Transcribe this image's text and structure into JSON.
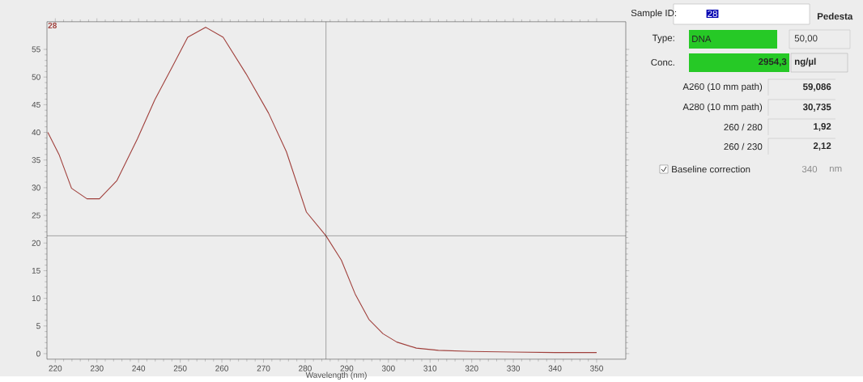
{
  "chart_data": [
    {
      "type": "line",
      "xlabel": "Wavelength (nm)",
      "xlim": [
        218,
        357
      ],
      "ylim": [
        -1,
        60
      ],
      "xticks": [
        220,
        230,
        240,
        250,
        260,
        270,
        280,
        290,
        300,
        310,
        320,
        330,
        340,
        350
      ],
      "yticks": [
        0,
        5,
        10,
        15,
        20,
        25,
        30,
        35,
        40,
        45,
        50,
        55
      ],
      "series": [
        {
          "name": "28",
          "color": "#a0403c",
          "x": [
            218.2,
            220.9,
            223.9,
            227.6,
            230.6,
            234.8,
            239.7,
            243.9,
            248.2,
            251.8,
            256.1,
            260.3,
            265.8,
            271.2,
            275.5,
            280.3,
            285,
            288.7,
            292,
            295.3,
            298.7,
            302,
            306.7,
            312,
            320,
            330,
            340,
            350
          ],
          "values": [
            40.0,
            36.0,
            29.9,
            28.0,
            28.0,
            31.3,
            38.8,
            45.9,
            52.0,
            57.2,
            59.0,
            57.2,
            50.6,
            43.5,
            36.5,
            25.6,
            21.3,
            16.9,
            10.8,
            6.2,
            3.6,
            2.1,
            1.0,
            0.6,
            0.4,
            0.3,
            0.2,
            0.2
          ]
        }
      ],
      "ref_lines": [
        {
          "axis": "x",
          "value": 285,
          "color": "#333333"
        },
        {
          "axis": "y",
          "value": 21.3,
          "color": "#333333"
        }
      ]
    },
    {
      "type": "other",
      "annotations": [
        "Sample ID:",
        "28",
        "Pedesta",
        "Type:",
        "DNA",
        "50,00",
        "Conc.",
        "2954,3",
        "ng/µl",
        "A260 (10 mm path)",
        "59,086",
        "A280 (10 mm path)",
        "30,735",
        "260 / 280",
        "1,92",
        "260 / 230",
        "2,12",
        "Baseline correction",
        "340",
        "nm"
      ]
    }
  ]
}
